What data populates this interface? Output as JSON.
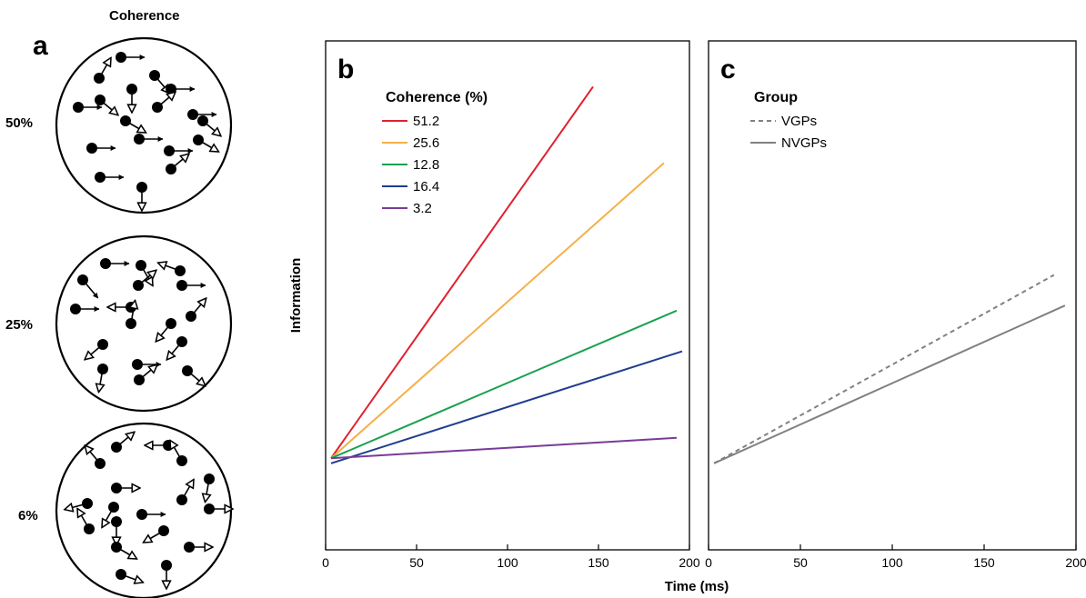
{
  "panel_a": {
    "letter": "a",
    "title": "Coherence",
    "circles": [
      {
        "label": "50%"
      },
      {
        "label": "25%"
      },
      {
        "label": "6%"
      }
    ]
  },
  "shared": {
    "xlabel": "Time (ms)",
    "ylabel": "Information"
  },
  "chart_data": [
    {
      "panel": "b",
      "type": "line",
      "legend_title": "Coherence (%)",
      "legend_position": "top-left",
      "xlim": [
        0,
        200
      ],
      "xticks": [
        0,
        50,
        100,
        150,
        200
      ],
      "ylim": [
        0,
        100
      ],
      "grid": false,
      "series": [
        {
          "name": "51.2",
          "color": "#e02030",
          "dash": false,
          "x": [
            3,
            147
          ],
          "y": [
            18,
            91
          ]
        },
        {
          "name": "25.6",
          "color": "#f5b04a",
          "dash": false,
          "x": [
            3,
            186
          ],
          "y": [
            18,
            76
          ]
        },
        {
          "name": "12.8",
          "color": "#1aa050",
          "dash": false,
          "x": [
            3,
            193
          ],
          "y": [
            18,
            47
          ]
        },
        {
          "name": "16.4",
          "color": "#1e3d8f",
          "dash": false,
          "x": [
            3,
            196
          ],
          "y": [
            17,
            39
          ]
        },
        {
          "name": "3.2",
          "color": "#7a3b98",
          "dash": false,
          "x": [
            3,
            193
          ],
          "y": [
            18,
            22
          ]
        }
      ]
    },
    {
      "panel": "c",
      "type": "line",
      "legend_title": "Group",
      "legend_position": "top-left",
      "xlim": [
        0,
        200
      ],
      "xticks": [
        0,
        50,
        100,
        150,
        200
      ],
      "ylim": [
        0,
        100
      ],
      "grid": false,
      "series": [
        {
          "name": "VGPs",
          "color": "#808080",
          "dash": true,
          "x": [
            3,
            188
          ],
          "y": [
            17,
            54
          ]
        },
        {
          "name": "NVGPs",
          "color": "#808080",
          "dash": false,
          "x": [
            3,
            194
          ],
          "y": [
            17,
            48
          ]
        }
      ]
    }
  ]
}
